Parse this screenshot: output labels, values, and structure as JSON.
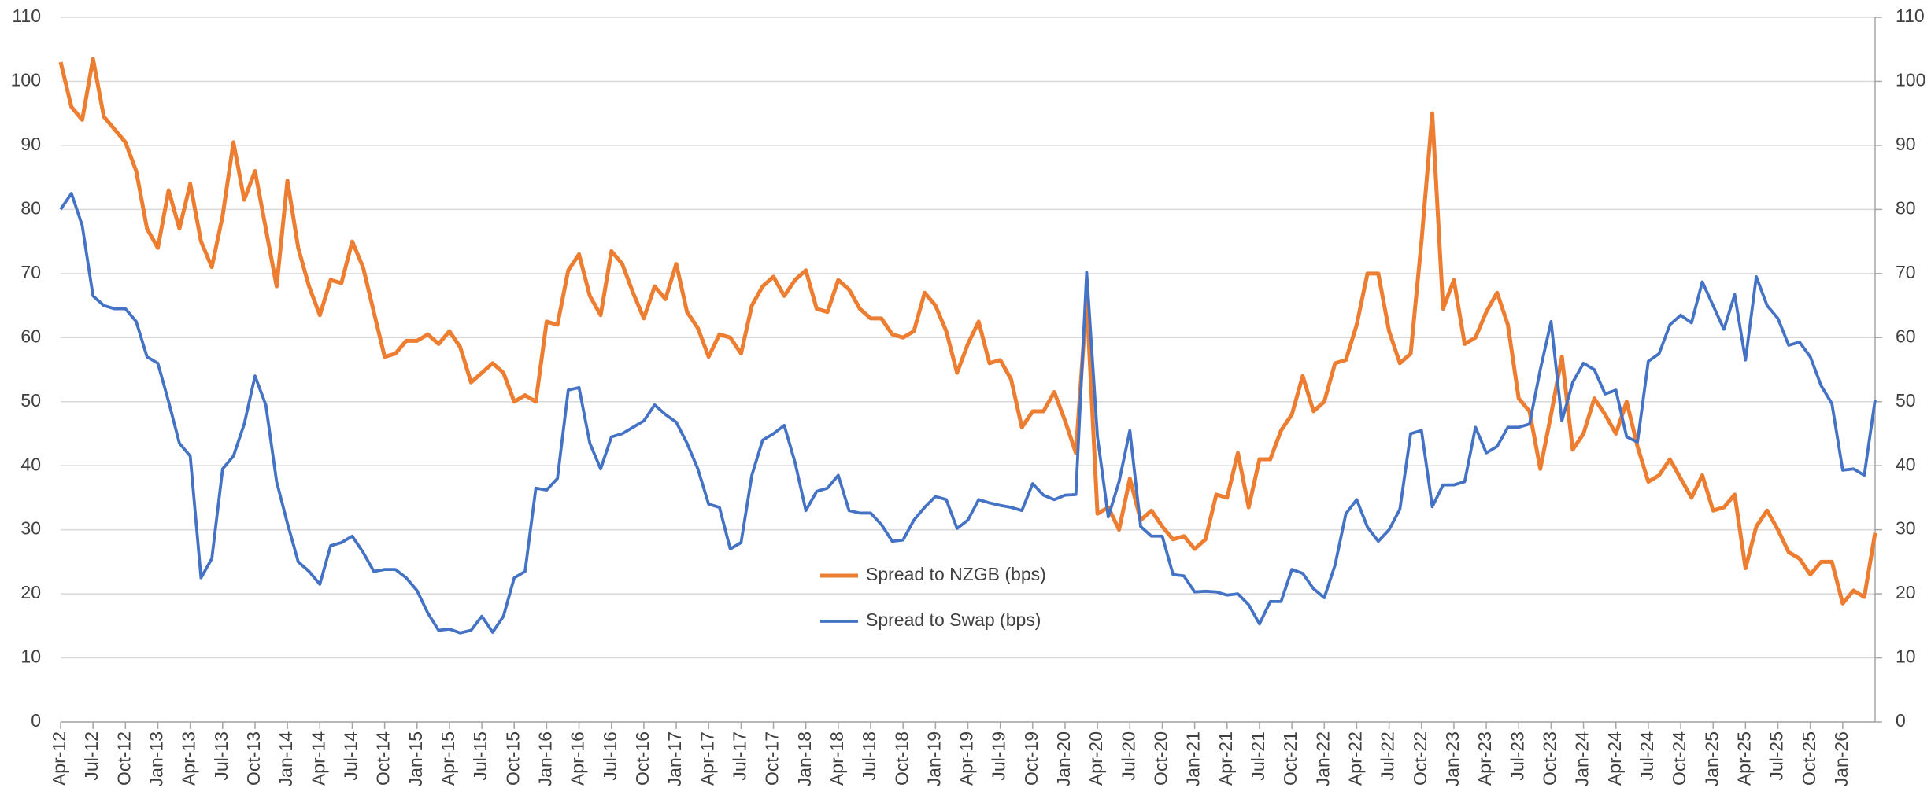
{
  "chart_data": {
    "type": "line",
    "categories": [
      "Apr-12",
      null,
      null,
      "Jul-12",
      null,
      null,
      "Oct-12",
      null,
      null,
      "Jan-13",
      null,
      null,
      "Apr-13",
      null,
      null,
      "Jul-13",
      null,
      null,
      "Oct-13",
      null,
      null,
      "Jan-14",
      null,
      null,
      "Apr-14",
      null,
      null,
      "Jul-14",
      null,
      null,
      "Oct-14",
      null,
      null,
      "Jan-15",
      null,
      null,
      "Apr-15",
      null,
      null,
      "Jul-15",
      null,
      null,
      "Oct-15",
      null,
      null,
      "Jan-16",
      null,
      null,
      "Apr-16",
      null,
      null,
      "Jul-16",
      null,
      null,
      "Oct-16",
      null,
      null,
      "Jan-17",
      null,
      null,
      "Apr-17",
      null,
      null,
      "Jul-17",
      null,
      null,
      "Oct-17",
      null,
      null,
      "Jan-18",
      null,
      null,
      "Apr-18",
      null,
      null,
      "Jul-18",
      null,
      null,
      "Oct-18",
      null,
      null,
      "Jan-19",
      null,
      null,
      "Apr-19",
      null,
      null,
      "Jul-19",
      null,
      null,
      "Oct-19",
      null,
      null,
      "Jan-20",
      null,
      null,
      "Apr-20",
      null,
      null,
      "Jul-20",
      null,
      null,
      "Oct-20",
      null,
      null,
      "Jan-21",
      null,
      null,
      "Apr-21",
      null,
      null,
      "Jul-21",
      null,
      null,
      "Oct-21",
      null,
      null,
      "Jan-22",
      null,
      null,
      "Apr-22",
      null,
      null,
      "Jul-22",
      null,
      null,
      "Oct-22",
      null,
      null,
      "Jan-23",
      null,
      null,
      "Apr-23",
      null,
      null,
      "Jul-23",
      null,
      null,
      "Oct-23",
      null,
      null,
      "Jan-24",
      null,
      null,
      "Apr-24",
      null,
      null,
      "Jul-24",
      null,
      null,
      "Oct-24",
      null,
      null,
      "Jan-25",
      null,
      null,
      "Apr-25",
      null,
      null,
      "Jul-25",
      null,
      null,
      "Oct-25",
      null,
      null,
      "Jan-26",
      null,
      null,
      null
    ],
    "series": [
      {
        "name": "Spread to NZGB (bps)",
        "color": "#ed7d31",
        "values": [
          103,
          96,
          94,
          103.5,
          94.5,
          92.5,
          90.5,
          86,
          77,
          74,
          83,
          77,
          84,
          75,
          71,
          79,
          90.5,
          81.5,
          86,
          77,
          68,
          84.5,
          74,
          68,
          63.5,
          69,
          68.5,
          75,
          71,
          64,
          57,
          57.5,
          59.5,
          59.5,
          60.5,
          59,
          61,
          58.5,
          53,
          54.5,
          56,
          54.5,
          50,
          51,
          50,
          62.5,
          62,
          70.5,
          73,
          66.5,
          63.5,
          73.5,
          71.5,
          67,
          63,
          68,
          66,
          71.5,
          64,
          61.5,
          57,
          60.5,
          60,
          57.5,
          65,
          68,
          69.5,
          66.5,
          69,
          70.5,
          64.5,
          64,
          69,
          67.5,
          64.5,
          63,
          63,
          60.5,
          60,
          61,
          67,
          65,
          61,
          54.5,
          59,
          62.5,
          56,
          56.5,
          53.5,
          46,
          48.5,
          48.5,
          51.5,
          47,
          42,
          66,
          32.5,
          33.5,
          30,
          38,
          31.5,
          33,
          30.5,
          28.5,
          29,
          27,
          28.5,
          35.5,
          35,
          42,
          33.5,
          41,
          41,
          45.5,
          48,
          54,
          48.5,
          50,
          56,
          56.5,
          62,
          70,
          70,
          61,
          56,
          57.5,
          75,
          95,
          64.5,
          69,
          59,
          60,
          64,
          67,
          62,
          50.5,
          48.5,
          39.5,
          48,
          57,
          42.5,
          45,
          50.5,
          48,
          45,
          50,
          43,
          37.5,
          38.5,
          41,
          38,
          35,
          38.5,
          33,
          33.5,
          35.5,
          24,
          30.5,
          33,
          30,
          26.5,
          25.5,
          23,
          25,
          25,
          18.5,
          20.5,
          19.5,
          29.5
        ]
      },
      {
        "name": "Spread to Swap (bps)",
        "color": "#4472c4",
        "values": [
          80,
          82.5,
          77.5,
          66.5,
          65,
          64.5,
          64.5,
          62.5,
          57,
          56,
          50,
          43.5,
          41.5,
          22.5,
          25.5,
          39.5,
          41.5,
          46.5,
          54,
          49.5,
          37.5,
          31,
          25,
          23.5,
          21.5,
          27.5,
          28,
          29,
          26.5,
          23.5,
          23.8,
          23.8,
          22.5,
          20.5,
          17,
          14.3,
          14.5,
          13.9,
          14.3,
          16.5,
          14,
          16.5,
          22.5,
          23.5,
          36.5,
          36.2,
          38,
          51.8,
          52.2,
          43.5,
          39.5,
          44.5,
          45,
          46,
          47,
          49.5,
          48,
          46.8,
          43.5,
          39.5,
          34,
          33.5,
          27,
          28,
          38.5,
          44,
          45,
          46.3,
          40.5,
          33,
          36,
          36.5,
          38.5,
          33,
          32.6,
          32.6,
          30.8,
          28.2,
          28.4,
          31.5,
          33.5,
          35.2,
          34.7,
          30.2,
          31.5,
          34.7,
          34.2,
          33.8,
          33.5,
          33,
          37.2,
          35.4,
          34.7,
          35.4,
          35.5,
          70.2,
          44.5,
          32,
          37.5,
          45.5,
          30.5,
          29,
          29,
          23,
          22.8,
          20.3,
          20.4,
          20.3,
          19.8,
          20,
          18.3,
          15.3,
          18.8,
          18.8,
          23.8,
          23.2,
          20.8,
          19.4,
          24.5,
          32.5,
          34.7,
          30.4,
          28.2,
          30,
          33.2,
          45,
          45.5,
          33.6,
          37,
          37,
          37.5,
          46,
          42,
          43,
          46,
          46,
          46.5,
          55,
          62.5,
          47,
          53,
          56,
          55,
          51.2,
          51.8,
          44.5,
          43.7,
          56.3,
          57.5,
          62,
          63.5,
          62.3,
          68.7,
          65,
          61.3,
          66.7,
          56.5,
          69.5,
          65,
          63,
          58.8,
          59.3,
          57,
          52.5,
          49.7,
          39.3,
          39.5,
          38.5,
          50.3
        ]
      }
    ],
    "ylim": [
      0,
      110
    ],
    "yticks": [
      0,
      10,
      20,
      30,
      40,
      50,
      60,
      70,
      80,
      90,
      100,
      110
    ],
    "y2lim": [
      0,
      110
    ],
    "y2ticks": [
      0,
      10,
      20,
      30,
      40,
      50,
      60,
      70,
      80,
      90,
      100,
      110
    ],
    "grid": true,
    "legend": "center"
  }
}
